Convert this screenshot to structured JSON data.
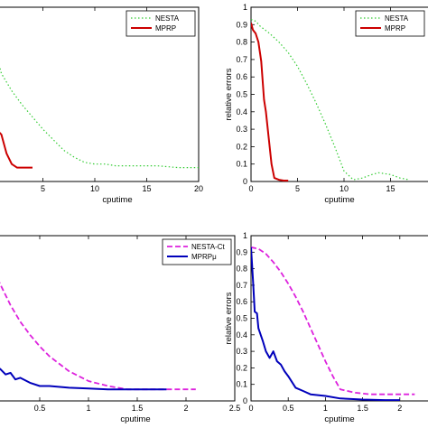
{
  "chart_data": [
    {
      "type": "line",
      "panel": "top-left",
      "xlabel": "cputime",
      "ylabel": "",
      "xlim": [
        0,
        20
      ],
      "ylim": [
        0,
        1
      ],
      "xticks": [
        {
          "value": 5,
          "label": "5"
        },
        {
          "value": 10,
          "label": "10"
        },
        {
          "value": 15,
          "label": "15"
        },
        {
          "value": 20,
          "label": "20"
        }
      ],
      "yticks": [],
      "grid": false,
      "legend_position": "top-right",
      "series": [
        {
          "name": "NESTA",
          "color": "#33cc33",
          "style": "dotted",
          "x": [
            0,
            1,
            2,
            3,
            4,
            5,
            6,
            7,
            8,
            9,
            10,
            11,
            12,
            14,
            16,
            18,
            20
          ],
          "y": [
            0.85,
            0.62,
            0.52,
            0.44,
            0.37,
            0.3,
            0.24,
            0.18,
            0.14,
            0.11,
            0.1,
            0.1,
            0.09,
            0.09,
            0.09,
            0.08,
            0.08
          ]
        },
        {
          "name": "MPRP",
          "color": "#cc0000",
          "style": "solid",
          "x": [
            0,
            0.5,
            1,
            1.5,
            2,
            2.5,
            3,
            3.5,
            4
          ],
          "y": [
            0.33,
            0.3,
            0.27,
            0.16,
            0.1,
            0.08,
            0.08,
            0.08,
            0.08
          ]
        }
      ]
    },
    {
      "type": "line",
      "panel": "top-right",
      "xlabel": "cputime",
      "ylabel": "relative errors",
      "xlim": [
        0,
        20
      ],
      "ylim": [
        0,
        1
      ],
      "xticks": [
        {
          "value": 0,
          "label": "0"
        },
        {
          "value": 5,
          "label": "5"
        },
        {
          "value": 10,
          "label": "10"
        },
        {
          "value": 15,
          "label": "15"
        }
      ],
      "yticks": [
        {
          "value": 0,
          "label": "0"
        },
        {
          "value": 0.1,
          "label": "0.1"
        },
        {
          "value": 0.2,
          "label": "0.2"
        },
        {
          "value": 0.3,
          "label": "0.3"
        },
        {
          "value": 0.4,
          "label": "0.4"
        },
        {
          "value": 0.5,
          "label": "0.5"
        },
        {
          "value": 0.6,
          "label": "0.6"
        },
        {
          "value": 0.7,
          "label": "0.7"
        },
        {
          "value": 0.8,
          "label": "0.8"
        },
        {
          "value": 0.9,
          "label": "0.9"
        },
        {
          "value": 1,
          "label": "1"
        }
      ],
      "grid": false,
      "legend_position": "top-right",
      "series": [
        {
          "name": "NESTA",
          "color": "#33cc33",
          "style": "dotted",
          "x": [
            0,
            0.5,
            1,
            2,
            3,
            4,
            5,
            6,
            7,
            8,
            9,
            10,
            11,
            12,
            13,
            13.7,
            15,
            16,
            17
          ],
          "y": [
            0.93,
            0.92,
            0.89,
            0.85,
            0.8,
            0.74,
            0.66,
            0.56,
            0.45,
            0.33,
            0.2,
            0.06,
            0.01,
            0.02,
            0.04,
            0.05,
            0.04,
            0.02,
            0.01
          ]
        },
        {
          "name": "MPRP",
          "color": "#cc0000",
          "style": "solid",
          "x": [
            0,
            0.2,
            0.5,
            0.8,
            1.1,
            1.4,
            1.6,
            1.9,
            2.2,
            2.5,
            3,
            3.5,
            4
          ],
          "y": [
            0.91,
            0.87,
            0.85,
            0.8,
            0.69,
            0.47,
            0.4,
            0.25,
            0.1,
            0.02,
            0.01,
            0.005,
            0.005
          ]
        }
      ]
    },
    {
      "type": "line",
      "panel": "bottom-left",
      "xlabel": "cputime",
      "ylabel": "",
      "xlim": [
        0,
        2.5
      ],
      "ylim": [
        0,
        1
      ],
      "xticks": [
        {
          "value": 0.5,
          "label": "0.5"
        },
        {
          "value": 1,
          "label": "1"
        },
        {
          "value": 1.5,
          "label": "1.5"
        },
        {
          "value": 2,
          "label": "2"
        },
        {
          "value": 2.5,
          "label": "2.5"
        }
      ],
      "yticks": [],
      "grid": false,
      "legend_position": "top-right",
      "series": [
        {
          "name": "NESTA-Ct",
          "color": "#dd22dd",
          "style": "dashed",
          "x": [
            0,
            0.1,
            0.2,
            0.3,
            0.4,
            0.5,
            0.6,
            0.8,
            1.0,
            1.2,
            1.4,
            1.6,
            1.8,
            2.0,
            2.1
          ],
          "y": [
            0.83,
            0.7,
            0.58,
            0.48,
            0.4,
            0.33,
            0.27,
            0.18,
            0.12,
            0.09,
            0.07,
            0.07,
            0.07,
            0.07,
            0.07
          ]
        },
        {
          "name": "MPRPμ",
          "color": "#0000bb",
          "style": "solid",
          "x": [
            0,
            0.05,
            0.08,
            0.1,
            0.15,
            0.2,
            0.25,
            0.3,
            0.4,
            0.5,
            0.6,
            0.8,
            1.0,
            1.2,
            1.5,
            1.8
          ],
          "y": [
            0.27,
            0.27,
            0.2,
            0.19,
            0.16,
            0.17,
            0.13,
            0.14,
            0.11,
            0.09,
            0.09,
            0.08,
            0.075,
            0.07,
            0.07,
            0.07
          ]
        }
      ]
    },
    {
      "type": "line",
      "panel": "bottom-right",
      "xlabel": "cputime",
      "ylabel": "relative errors",
      "xlim": [
        0,
        2.5
      ],
      "ylim": [
        0,
        1
      ],
      "xticks": [
        {
          "value": 0,
          "label": "0"
        },
        {
          "value": 0.5,
          "label": "0.5"
        },
        {
          "value": 1,
          "label": "1"
        },
        {
          "value": 1.5,
          "label": "1.5"
        },
        {
          "value": 2,
          "label": "2"
        },
        {
          "value": 2.5,
          "label": "2.5"
        }
      ],
      "yticks": [
        {
          "value": 0,
          "label": "0"
        },
        {
          "value": 0.1,
          "label": "0.1"
        },
        {
          "value": 0.2,
          "label": "0.2"
        },
        {
          "value": 0.3,
          "label": "0.3"
        },
        {
          "value": 0.4,
          "label": "0.4"
        },
        {
          "value": 0.5,
          "label": "0.5"
        },
        {
          "value": 0.6,
          "label": "0.6"
        },
        {
          "value": 0.7,
          "label": "0.7"
        },
        {
          "value": 0.8,
          "label": "0.8"
        },
        {
          "value": 0.9,
          "label": "0.9"
        },
        {
          "value": 1,
          "label": "1"
        }
      ],
      "grid": false,
      "legend_position": "top-right",
      "series": [
        {
          "name": "",
          "color": "#dd22dd",
          "style": "dashed",
          "x": [
            0,
            0.1,
            0.2,
            0.3,
            0.4,
            0.5,
            0.6,
            0.7,
            0.8,
            0.9,
            1.0,
            1.1,
            1.2,
            1.4,
            1.6,
            1.8,
            2.0,
            2.2
          ],
          "y": [
            0.93,
            0.92,
            0.89,
            0.84,
            0.78,
            0.71,
            0.63,
            0.54,
            0.44,
            0.34,
            0.24,
            0.15,
            0.07,
            0.05,
            0.04,
            0.04,
            0.04,
            0.04
          ]
        },
        {
          "name": "",
          "color": "#0000bb",
          "style": "solid",
          "x": [
            0,
            0.03,
            0.05,
            0.08,
            0.1,
            0.13,
            0.16,
            0.2,
            0.25,
            0.3,
            0.35,
            0.4,
            0.45,
            0.5,
            0.6,
            0.7,
            0.8,
            1.0,
            1.2,
            1.5,
            1.8,
            2.0
          ],
          "y": [
            0.93,
            0.7,
            0.54,
            0.53,
            0.44,
            0.4,
            0.36,
            0.3,
            0.26,
            0.3,
            0.24,
            0.22,
            0.18,
            0.15,
            0.08,
            0.06,
            0.04,
            0.03,
            0.015,
            0.008,
            0.005,
            0.005
          ]
        }
      ]
    }
  ]
}
